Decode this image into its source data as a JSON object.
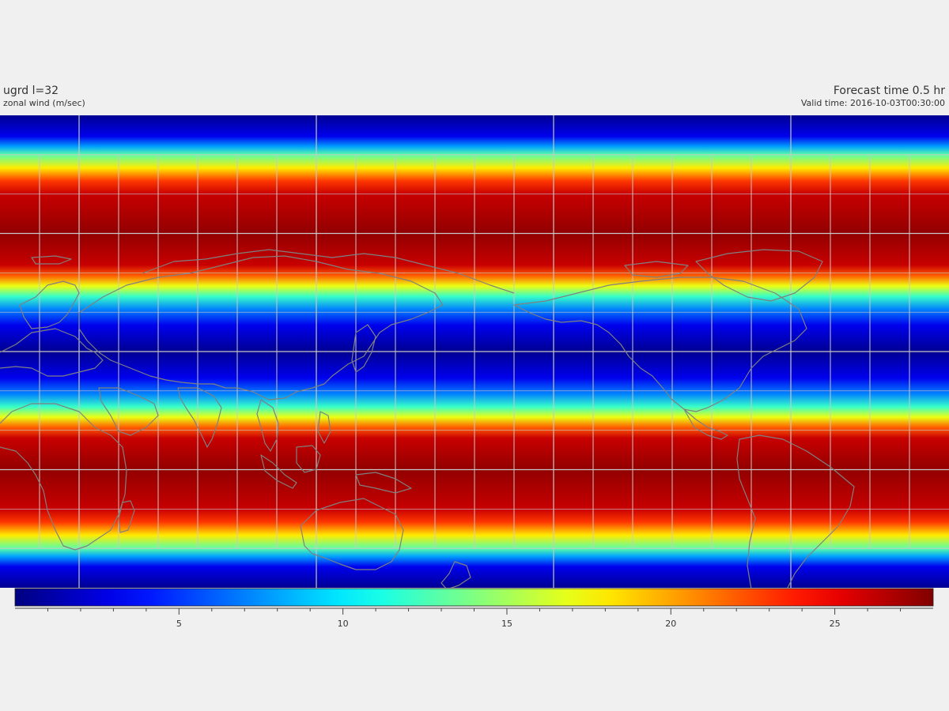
{
  "header": {
    "variable_title": "ugrd l=32",
    "variable_subtitle": "zonal wind (m/sec)",
    "forecast_title": "Forecast time 0.5 hr",
    "valid_time": "Valid time: 2016-10-03T00:30:00"
  },
  "map": {
    "projection": "equirectangular",
    "lon_range": [
      30,
      390
    ],
    "lat_range": [
      -90,
      90
    ],
    "colormap": "jet",
    "bands": [
      {
        "lat": 90,
        "value": 0.5
      },
      {
        "lat": 82,
        "value": 3
      },
      {
        "lat": 78,
        "value": 8
      },
      {
        "lat": 75,
        "value": 13
      },
      {
        "lat": 70,
        "value": 18
      },
      {
        "lat": 65,
        "value": 23
      },
      {
        "lat": 60,
        "value": 26
      },
      {
        "lat": 45,
        "value": 27.5
      },
      {
        "lat": 33,
        "value": 26
      },
      {
        "lat": 29,
        "value": 22
      },
      {
        "lat": 25,
        "value": 17
      },
      {
        "lat": 21,
        "value": 12
      },
      {
        "lat": 16,
        "value": 7
      },
      {
        "lat": 10,
        "value": 3
      },
      {
        "lat": 0,
        "value": 0.5
      },
      {
        "lat": -10,
        "value": 3
      },
      {
        "lat": -16,
        "value": 7
      },
      {
        "lat": -21,
        "value": 12
      },
      {
        "lat": -25,
        "value": 17
      },
      {
        "lat": -29,
        "value": 22
      },
      {
        "lat": -33,
        "value": 26
      },
      {
        "lat": -45,
        "value": 27.5
      },
      {
        "lat": -60,
        "value": 26
      },
      {
        "lat": -65,
        "value": 23
      },
      {
        "lat": -70,
        "value": 18
      },
      {
        "lat": -75,
        "value": 13
      },
      {
        "lat": -78,
        "value": 8
      },
      {
        "lat": -82,
        "value": 3
      },
      {
        "lat": -90,
        "value": 0.5
      }
    ],
    "coastline_color": "#808080",
    "gridline_color": "#c8c8c8"
  },
  "colorbar": {
    "min": 0,
    "max": 28,
    "labels": [
      "5",
      "10",
      "15",
      "20",
      "25"
    ],
    "label_values": [
      5,
      10,
      15,
      20,
      25
    ],
    "minor_step": 1
  }
}
